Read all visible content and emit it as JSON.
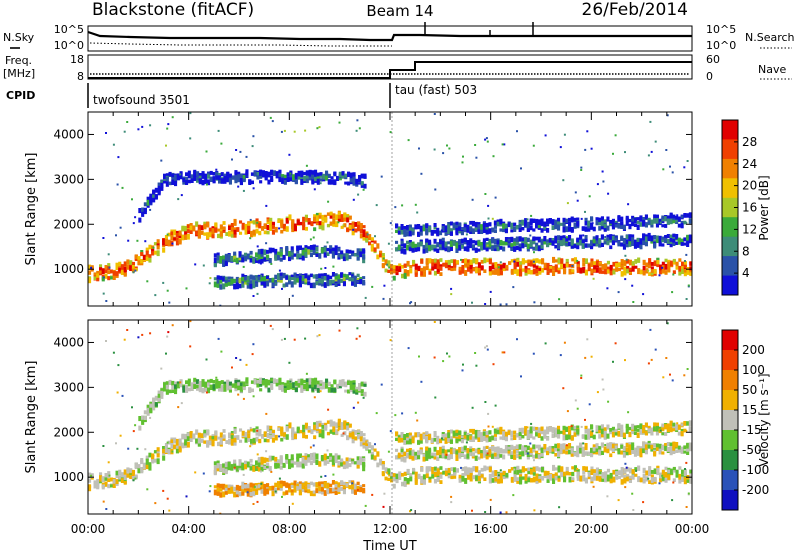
{
  "header": {
    "station": "Blackstone (fitACF)",
    "beam": "Beam 14",
    "date": "26/Feb/2014"
  },
  "left_labels": {
    "nsky": "N.Sky",
    "freq": "Freq.",
    "freq_unit": "[MHz]",
    "cpid": "CPID"
  },
  "right_labels": {
    "nsearch": "N.Search",
    "nave": "Nave"
  },
  "noise_panel": {
    "left_ticks": [
      "10^5",
      "10^0"
    ],
    "right_ticks": [
      "10^5",
      "10^0"
    ]
  },
  "freq_panel": {
    "left_ticks": [
      "18",
      "8"
    ],
    "right_ticks": [
      "60",
      "0"
    ],
    "freq_range_mhz": [
      8,
      18
    ],
    "nave_range": [
      0,
      60
    ],
    "nave": [
      {
        "t0": 0,
        "t1": 12.0,
        "value": 0
      },
      {
        "t0": 12.0,
        "t1": 12.7,
        "value": 26
      },
      {
        "t0": 12.7,
        "t1": 24,
        "value": 43
      }
    ]
  },
  "cpid_panel": {
    "segments": [
      {
        "label": "twofsound 3501",
        "start_hour": 0
      },
      {
        "label": "tau (fast) 503",
        "start_hour": 12.0
      }
    ]
  },
  "power_panel": {
    "ylabel": "Slant Range [km]",
    "yticks": [
      "4000",
      "3000",
      "2000",
      "1000"
    ],
    "colorbar_label": "Power [dB]",
    "colorbar_ticks": [
      "28",
      "24",
      "20",
      "16",
      "12",
      "8",
      "4"
    ],
    "colors": [
      "#1010d8",
      "#2a52a8",
      "#3d8c78",
      "#3aaa3a",
      "#a8c828",
      "#f0c000",
      "#f08000",
      "#f04000",
      "#e00000"
    ]
  },
  "velocity_panel": {
    "ylabel": "Slant Range [km]",
    "yticks": [
      "4000",
      "3000",
      "2000",
      "1000"
    ],
    "colorbar_label": "Velocity [m s⁻¹]",
    "colorbar_ticks": [
      "200",
      "100",
      "50",
      "15",
      "-15",
      "-50",
      "-100",
      "-200"
    ],
    "colors": [
      "#1010c0",
      "#2a52b8",
      "#2a9040",
      "#60c030",
      "#c0c0b8",
      "#f0b000",
      "#f08000",
      "#f04000",
      "#e00000"
    ]
  },
  "time_axis": {
    "ticks": [
      "00:00",
      "04:00",
      "08:00",
      "12:00",
      "16:00",
      "20:00",
      "00:00"
    ],
    "label": "Time UT"
  },
  "chart_data": {
    "type": "heatmap",
    "x_range_hours": [
      0,
      24
    ],
    "y_range_km": [
      180,
      4500
    ],
    "power_scale_db": [
      0,
      30
    ],
    "velocity_scale_ms": [
      -250,
      250
    ],
    "echo_bands": [
      {
        "name": "main",
        "points": [
          [
            0,
            900
          ],
          [
            1.5,
            1000
          ],
          [
            3,
            1600
          ],
          [
            4,
            1850
          ],
          [
            6,
            1900
          ],
          [
            8,
            2000
          ],
          [
            10,
            2100
          ],
          [
            11,
            1800
          ],
          [
            12,
            900
          ],
          [
            12.2,
            1000
          ],
          [
            14,
            1050
          ],
          [
            16,
            1050
          ],
          [
            18,
            1050
          ],
          [
            20,
            1050
          ],
          [
            22,
            1050
          ],
          [
            24,
            1050
          ]
        ],
        "power_db": 26,
        "velocity_ms": -10
      },
      {
        "name": "lower-midday",
        "points": [
          [
            5,
            700
          ],
          [
            7,
            750
          ],
          [
            9,
            750
          ],
          [
            11,
            800
          ]
        ],
        "power_db": 10,
        "velocity_ms": -60
      },
      {
        "name": "midday-scatter",
        "points": [
          [
            5,
            1200
          ],
          [
            7,
            1300
          ],
          [
            9,
            1400
          ],
          [
            11,
            1300
          ]
        ],
        "power_db": 9,
        "velocity_ms": 20
      },
      {
        "name": "upper-morning",
        "points": [
          [
            2,
            2200
          ],
          [
            3,
            3000
          ],
          [
            4,
            3050
          ],
          [
            8,
            3050
          ],
          [
            10,
            3050
          ],
          [
            11,
            2950
          ]
        ],
        "power_db": 6,
        "velocity_ms": 40
      },
      {
        "name": "afternoon-upper",
        "points": [
          [
            12.2,
            1500
          ],
          [
            16,
            1550
          ],
          [
            20,
            1600
          ],
          [
            24,
            1650
          ]
        ],
        "power_db": 8,
        "velocity_ms": 0
      },
      {
        "name": "afternoon-top",
        "points": [
          [
            12.2,
            1850
          ],
          [
            16,
            1950
          ],
          [
            20,
            2000
          ],
          [
            24,
            2100
          ]
        ],
        "power_db": 7,
        "velocity_ms": 5
      }
    ]
  }
}
